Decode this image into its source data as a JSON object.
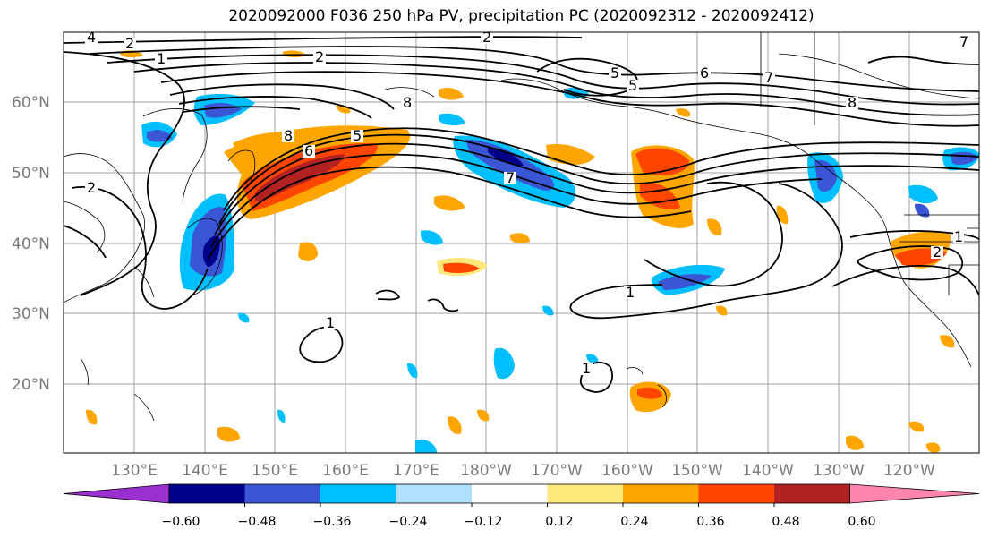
{
  "title": "2020092000 F036 250 hPa PV, precipitation PC (2020092312 - 2020092412)",
  "map": {
    "lat_labels": [
      "60°N",
      "50°N",
      "40°N",
      "30°N",
      "20°N"
    ],
    "lon_labels": [
      "130°E",
      "140°E",
      "150°E",
      "160°E",
      "170°E",
      "180°W",
      "170°W",
      "160°W",
      "150°W",
      "140°W",
      "130°W",
      "120°W"
    ],
    "pv_contour_labels": [
      "1",
      "2",
      "4",
      "5",
      "6",
      "7",
      "8"
    ]
  },
  "colorbar": {
    "tick_labels": [
      "−0.60",
      "−0.48",
      "−0.36",
      "−0.24",
      "−0.12",
      "0.12",
      "0.24",
      "0.36",
      "0.48",
      "0.60"
    ],
    "colors": [
      "#9b30d0",
      "#00008b",
      "#3a56d4",
      "#00bfff",
      "#b0e0ff",
      "#ffffff",
      "#ffe87a",
      "#ffa500",
      "#ff4500",
      "#b22222",
      "#ff85b0"
    ]
  },
  "colors": {
    "grid": "#a0a0a0",
    "contour": "#000000",
    "coast": "#000000"
  }
}
